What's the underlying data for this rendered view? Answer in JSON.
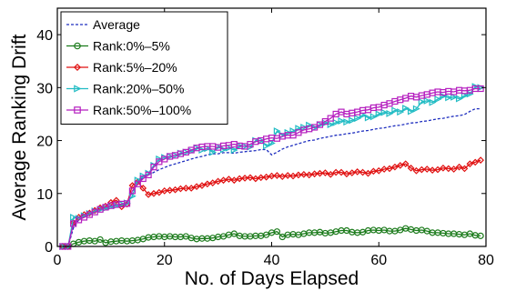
{
  "chart_data": {
    "type": "line",
    "title": "",
    "xlabel": "No. of Days Elapsed",
    "ylabel": "Average Ranking Drift",
    "xlim": [
      0,
      80
    ],
    "ylim": [
      0,
      45
    ],
    "xticks": [
      0,
      20,
      40,
      60,
      80
    ],
    "yticks": [
      0,
      10,
      20,
      30,
      40
    ],
    "xtick_labels": [
      "0",
      "20",
      "40",
      "60",
      "80"
    ],
    "ytick_labels": [
      "0",
      "10",
      "20",
      "30",
      "40"
    ],
    "grid": false,
    "legend_position": "top-left",
    "x": [
      1,
      2,
      3,
      4,
      5,
      6,
      7,
      8,
      9,
      10,
      11,
      12,
      13,
      14,
      15,
      16,
      17,
      18,
      19,
      20,
      21,
      22,
      23,
      24,
      25,
      26,
      27,
      28,
      29,
      30,
      31,
      32,
      33,
      34,
      35,
      36,
      37,
      38,
      39,
      40,
      41,
      42,
      43,
      44,
      45,
      46,
      47,
      48,
      49,
      50,
      51,
      52,
      53,
      54,
      55,
      56,
      57,
      58,
      59,
      60,
      61,
      62,
      63,
      64,
      65,
      66,
      67,
      68,
      69,
      70,
      71,
      72,
      73,
      74,
      75,
      76,
      77,
      78,
      79
    ],
    "series": [
      {
        "name": "Average",
        "color": "#1f2fbf",
        "style": "dotted",
        "marker": "none",
        "values": [
          0.0,
          0.0,
          3.5,
          5.0,
          5.6,
          6.1,
          6.6,
          7.0,
          7.3,
          7.6,
          7.8,
          7.9,
          8.0,
          10.3,
          12.1,
          13.0,
          13.5,
          14.0,
          14.5,
          14.9,
          15.3,
          15.6,
          15.9,
          16.2,
          16.5,
          16.8,
          17.0,
          17.3,
          17.5,
          17.5,
          17.7,
          17.7,
          17.6,
          17.8,
          17.9,
          18.0,
          18.1,
          18.3,
          18.3,
          17.3,
          17.8,
          18.4,
          18.8,
          19.1,
          19.4,
          19.7,
          20.0,
          20.1,
          20.4,
          20.6,
          20.8,
          21.0,
          21.1,
          21.3,
          21.4,
          21.6,
          21.8,
          21.9,
          22.1,
          22.3,
          22.4,
          22.6,
          22.8,
          22.9,
          23.1,
          23.3,
          23.4,
          23.6,
          23.7,
          23.9,
          24.1,
          24.2,
          24.4,
          24.6,
          24.7,
          24.9,
          25.5,
          26.0,
          26.0
        ]
      },
      {
        "name": "Rank:0%–5%",
        "color": "#1a7a1a",
        "style": "solid",
        "marker": "circle",
        "values": [
          0.0,
          0.0,
          0.5,
          0.8,
          1.0,
          1.1,
          1.0,
          1.3,
          0.7,
          0.9,
          1.0,
          1.1,
          1.0,
          1.1,
          1.2,
          1.4,
          1.7,
          1.8,
          1.9,
          1.8,
          1.9,
          1.8,
          1.8,
          1.9,
          1.6,
          1.4,
          1.5,
          1.5,
          1.6,
          1.8,
          1.9,
          2.2,
          2.4,
          2.0,
          1.9,
          1.9,
          2.0,
          2.0,
          2.2,
          2.6,
          2.8,
          1.8,
          2.2,
          2.3,
          2.2,
          2.4,
          2.6,
          2.6,
          2.7,
          2.5,
          2.6,
          2.8,
          3.0,
          3.0,
          2.7,
          2.6,
          2.7,
          3.0,
          3.1,
          3.0,
          3.1,
          2.9,
          2.9,
          3.1,
          3.4,
          3.2,
          3.0,
          3.1,
          2.9,
          2.6,
          2.6,
          2.5,
          2.4,
          2.4,
          2.3,
          2.2,
          2.4,
          2.1,
          2.0
        ]
      },
      {
        "name": "Rank:5%–20%",
        "color": "#e01010",
        "style": "solid",
        "marker": "diamond",
        "values": [
          0.0,
          0.0,
          4.5,
          5.5,
          6.0,
          6.3,
          6.8,
          7.3,
          7.6,
          8.3,
          8.7,
          7.5,
          8.0,
          11.5,
          12.2,
          11.0,
          9.8,
          10.0,
          10.2,
          10.5,
          10.6,
          10.7,
          10.9,
          11.0,
          11.0,
          11.3,
          11.5,
          11.8,
          12.0,
          12.3,
          12.5,
          12.7,
          12.5,
          12.8,
          12.9,
          13.0,
          12.8,
          13.0,
          13.1,
          13.3,
          13.4,
          13.2,
          13.4,
          13.3,
          13.5,
          13.6,
          13.5,
          13.7,
          13.8,
          13.9,
          13.6,
          14.0,
          14.0,
          13.7,
          13.9,
          14.1,
          14.0,
          13.8,
          14.2,
          14.3,
          14.6,
          14.7,
          15.0,
          15.3,
          15.6,
          14.8,
          14.3,
          14.5,
          14.6,
          14.4,
          14.5,
          14.8,
          14.7,
          14.6,
          15.0,
          14.7,
          15.6,
          15.9,
          16.3
        ]
      },
      {
        "name": "Rank:20%–50%",
        "color": "#22bcc4",
        "style": "solid",
        "marker": "triangle-right",
        "values": [
          0.0,
          0.0,
          5.5,
          5.3,
          5.8,
          6.2,
          6.7,
          7.0,
          7.2,
          7.5,
          7.7,
          8.0,
          8.2,
          9.5,
          12.5,
          13.3,
          13.8,
          15.3,
          16.5,
          16.8,
          17.0,
          17.2,
          17.6,
          17.8,
          18.0,
          18.6,
          18.2,
          18.5,
          17.8,
          18.8,
          18.3,
          18.6,
          18.2,
          19.0,
          18.9,
          18.8,
          20.0,
          20.0,
          19.0,
          19.5,
          21.8,
          21.0,
          21.5,
          21.8,
          22.3,
          22.5,
          22.9,
          22.4,
          23.0,
          23.3,
          23.0,
          23.4,
          23.7,
          23.5,
          23.8,
          24.2,
          24.8,
          24.3,
          24.5,
          25.0,
          25.3,
          25.1,
          25.7,
          25.4,
          26.1,
          25.5,
          26.0,
          27.3,
          27.5,
          27.2,
          27.8,
          28.4,
          28.1,
          28.2,
          27.9,
          28.5,
          28.8,
          30.2,
          30.0
        ]
      },
      {
        "name": "Rank:50%–100%",
        "color": "#b51fbf",
        "style": "solid",
        "marker": "square",
        "values": [
          0.0,
          0.0,
          4.3,
          5.0,
          5.5,
          6.0,
          6.5,
          7.0,
          7.4,
          7.7,
          7.9,
          8.0,
          8.1,
          10.5,
          11.8,
          12.8,
          13.5,
          15.0,
          16.0,
          16.5,
          17.0,
          17.2,
          17.5,
          17.8,
          18.2,
          18.6,
          18.8,
          18.9,
          18.9,
          18.7,
          19.0,
          19.1,
          19.3,
          19.0,
          18.9,
          19.3,
          19.8,
          20.0,
          20.3,
          20.5,
          20.4,
          20.8,
          21.0,
          21.0,
          21.5,
          22.0,
          22.2,
          22.5,
          23.0,
          23.6,
          24.2,
          25.0,
          25.4,
          25.0,
          25.2,
          25.4,
          25.7,
          25.8,
          26.2,
          26.3,
          26.7,
          27.0,
          27.4,
          27.7,
          28.0,
          28.4,
          28.2,
          28.5,
          28.7,
          29.0,
          29.2,
          29.1,
          29.3,
          29.2,
          29.5,
          29.4,
          29.5,
          29.8,
          29.8
        ]
      }
    ]
  }
}
